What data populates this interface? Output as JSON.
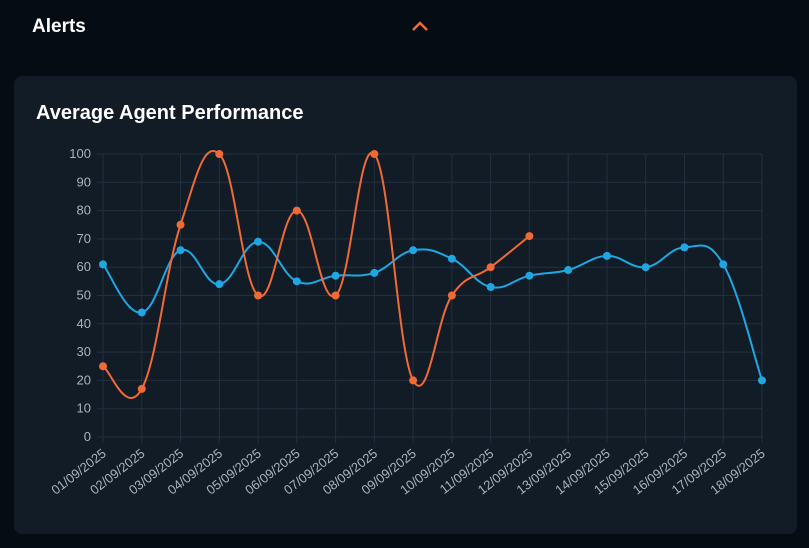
{
  "header": {
    "title": "Alerts"
  },
  "chart_data": {
    "type": "line",
    "title": "Average Agent Performance",
    "categories": [
      "01/09/2025",
      "02/09/2025",
      "03/09/2025",
      "04/09/2025",
      "05/09/2025",
      "06/09/2025",
      "07/09/2025",
      "08/09/2025",
      "09/09/2025",
      "10/09/2025",
      "11/09/2025",
      "12/09/2025",
      "13/09/2025",
      "14/09/2025",
      "15/09/2025",
      "16/09/2025",
      "17/09/2025",
      "18/09/2025"
    ],
    "series": [
      {
        "color": "#1ea7e1",
        "values": [
          61,
          44,
          66,
          54,
          69,
          55,
          57,
          58,
          66,
          63,
          53,
          57,
          59,
          64,
          60,
          67,
          61,
          20
        ]
      },
      {
        "color": "#f06a35",
        "values": [
          25,
          17,
          75,
          100,
          50,
          80,
          50,
          100,
          20,
          50,
          60,
          71,
          null,
          null,
          null,
          null,
          null,
          null
        ]
      }
    ],
    "ylim": [
      0,
      100
    ],
    "yticks": [
      0,
      10,
      20,
      30,
      40,
      50,
      60,
      70,
      80,
      90,
      100
    ],
    "grid": true
  }
}
